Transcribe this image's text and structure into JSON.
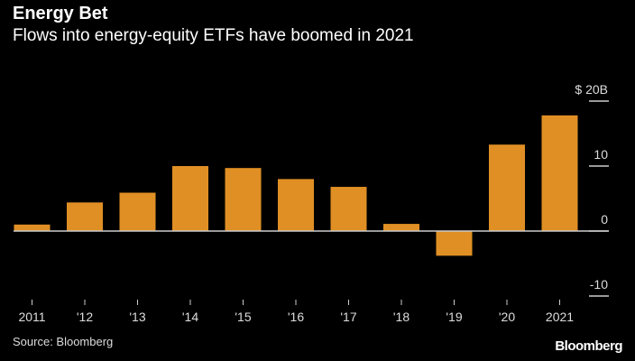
{
  "title": "Energy Bet",
  "subtitle": "Flows into energy-equity ETFs have boomed in 2021",
  "source": "Source: Bloomberg",
  "logo": "Bloomberg",
  "chart_data": {
    "type": "bar",
    "categories": [
      "2011",
      "'12",
      "'13",
      "'14",
      "'15",
      "'16",
      "'17",
      "'18",
      "'19",
      "'20",
      "2021"
    ],
    "values": [
      1.0,
      4.4,
      5.9,
      10.0,
      9.7,
      8.0,
      6.8,
      1.1,
      -3.8,
      13.3,
      17.8
    ],
    "ylim": [
      -10,
      20
    ],
    "yticks": [
      20,
      10,
      0,
      -10
    ],
    "ytick_labels": [
      "$ 20B",
      "10",
      "0",
      "-10"
    ],
    "yaxis_side": "right",
    "grid": false,
    "bar_color": "#e08f24",
    "background": "#000000"
  }
}
